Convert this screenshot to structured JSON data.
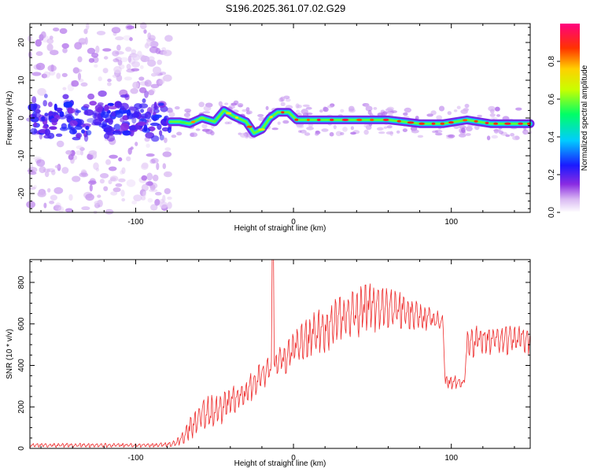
{
  "title": "S196.2025.361.07.02.G29",
  "chart_data": [
    {
      "type": "heatmap",
      "xlabel": "Height of straight line (km)",
      "ylabel": "Frequency (Hz)",
      "xlim": [
        -167,
        150
      ],
      "ylim": [
        -25,
        25
      ],
      "xticks": [
        -100,
        0,
        100
      ],
      "yticks": [
        -20,
        -10,
        0,
        10,
        20
      ],
      "colorbar": {
        "label": "Normalized spectral amplitude",
        "range": [
          0,
          1
        ],
        "ticks": [
          0.0,
          0.2,
          0.4,
          0.6,
          0.8
        ],
        "tick_labels": [
          "0.0",
          "0.2",
          "0.4",
          "0.6",
          "0.8"
        ]
      },
      "ridge": [
        {
          "x": -78,
          "y": -1
        },
        {
          "x": -72,
          "y": -1
        },
        {
          "x": -66,
          "y": -1.5
        },
        {
          "x": -58,
          "y": 0
        },
        {
          "x": -50,
          "y": -1
        },
        {
          "x": -44,
          "y": 2
        },
        {
          "x": -38,
          "y": 0.5
        },
        {
          "x": -30,
          "y": -1
        },
        {
          "x": -25,
          "y": -4
        },
        {
          "x": -20,
          "y": -3
        },
        {
          "x": -15,
          "y": 0
        },
        {
          "x": -10,
          "y": 1.5
        },
        {
          "x": -3,
          "y": 1.5
        },
        {
          "x": 2,
          "y": -0.5
        },
        {
          "x": 20,
          "y": -0.5
        },
        {
          "x": 40,
          "y": -0.5
        },
        {
          "x": 60,
          "y": -0.5
        },
        {
          "x": 80,
          "y": -1.5
        },
        {
          "x": 95,
          "y": -1.5
        },
        {
          "x": 110,
          "y": -0.5
        },
        {
          "x": 125,
          "y": -1.5
        },
        {
          "x": 140,
          "y": -1.5
        },
        {
          "x": 150,
          "y": -1.5
        }
      ]
    },
    {
      "type": "line",
      "series_name": "SNR",
      "xlabel": "Height of straight line (km)",
      "ylabel": "SNR (10 * v/v)",
      "xlim": [
        -167,
        150
      ],
      "ylim": [
        0,
        910
      ],
      "xticks": [
        -100,
        0,
        100
      ],
      "yticks": [
        0,
        200,
        400,
        600,
        800
      ],
      "color": "#ee2a2a",
      "spike": {
        "x": -13,
        "y": 910
      },
      "envelope": {
        "x": [
          -167,
          -120,
          -85,
          -75,
          -70,
          -65,
          -58,
          -50,
          -40,
          -30,
          -20,
          -10,
          0,
          10,
          20,
          30,
          40,
          50,
          60,
          70,
          80,
          90,
          95,
          96,
          100,
          105,
          108,
          110,
          120,
          130,
          140,
          150
        ],
        "lo": [
          5,
          5,
          5,
          10,
          20,
          40,
          80,
          90,
          150,
          200,
          280,
          330,
          390,
          430,
          460,
          500,
          530,
          555,
          565,
          570,
          565,
          560,
          550,
          290,
          280,
          285,
          280,
          430,
          450,
          445,
          450,
          450
        ],
        "hi": [
          25,
          25,
          25,
          40,
          90,
          160,
          250,
          260,
          300,
          340,
          420,
          500,
          560,
          640,
          700,
          740,
          780,
          800,
          790,
          760,
          700,
          680,
          640,
          350,
          360,
          350,
          340,
          590,
          600,
          600,
          600,
          600
        ]
      }
    }
  ]
}
